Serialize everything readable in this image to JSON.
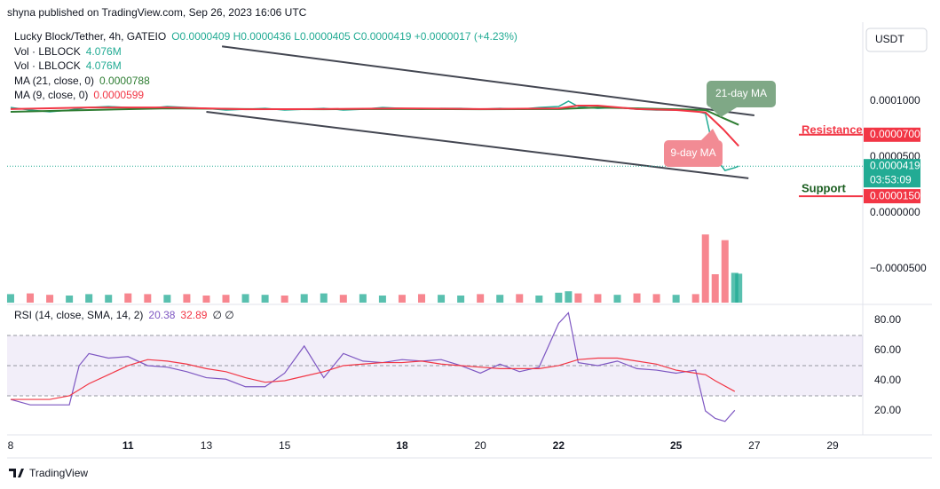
{
  "header": "shyna published on TradingView.com, Sep 26, 2023 16:06 UTC",
  "currency_button": "USDT",
  "footer": "TradingView",
  "chart_data": {
    "type": "line",
    "legend": {
      "symbol": "Lucky Block/Tether, 4h, GATEIO",
      "ohlc": "O0.0000409 H0.0000436 L0.0000405 C0.0000419 +0.0000017 (+4.23%)"
    },
    "xlim": [
      7.91,
      29.77
    ],
    "xticks": [
      8,
      11,
      13,
      15,
      18,
      20,
      22,
      25,
      27,
      29
    ],
    "ylim": [
      -8.1e-05,
      0.0001667
    ],
    "yticks": [
      {
        "value": 0.0001,
        "label": "0.0001000"
      },
      {
        "value": 5e-05,
        "label": "0.0000500"
      },
      {
        "value": 0,
        "label": "0.0000000"
      },
      {
        "value": -5e-05,
        "label": "−0.0000500"
      }
    ],
    "series": [
      {
        "name": "Lucky Block/Tether, 4h, GATEIO",
        "color": "#22ab94",
        "x": [
          8,
          8.5,
          9,
          9.5,
          10,
          10.5,
          11,
          11.5,
          12,
          12.5,
          13,
          13.5,
          14,
          14.5,
          15,
          15.5,
          16,
          16.5,
          17,
          17.5,
          18,
          18.5,
          19,
          19.5,
          20,
          20.5,
          21,
          21.5,
          22,
          22.25,
          22.5,
          23,
          23.5,
          24,
          24.5,
          25,
          25.5,
          25.75,
          26,
          26.25,
          26.5,
          26.6
        ],
        "values": [
          9.44e-05,
          9.21e-05,
          9.05e-05,
          9.21e-05,
          9.44e-05,
          9.52e-05,
          9.44e-05,
          9.36e-05,
          9.52e-05,
          9.44e-05,
          9.36e-05,
          9.21e-05,
          9.28e-05,
          9.36e-05,
          9.21e-05,
          9.28e-05,
          9.36e-05,
          9.21e-05,
          9.28e-05,
          9.44e-05,
          9.36e-05,
          9.28e-05,
          9.36e-05,
          9.36e-05,
          9.28e-05,
          9.36e-05,
          9.28e-05,
          9.44e-05,
          9.52e-05,
          0.0001,
          9.52e-05,
          9.36e-05,
          9.44e-05,
          9.28e-05,
          9.21e-05,
          9.21e-05,
          9.13e-05,
          8.89e-05,
          5e-05,
          3.8e-05,
          4.05e-05,
          4.19e-05
        ]
      },
      {
        "name": "MA (21, close, 0)",
        "color": "#2e7d32",
        "x": [
          8,
          10,
          12,
          14,
          16,
          18,
          20,
          22,
          23,
          24,
          25,
          25.75,
          26.2,
          26.6
        ],
        "values": [
          9.05e-05,
          9.21e-05,
          9.36e-05,
          9.3e-05,
          9.28e-05,
          9.3e-05,
          9.28e-05,
          9.3e-05,
          9.44e-05,
          9.36e-05,
          9.28e-05,
          9.21e-05,
          8.5e-05,
          7.88e-05
        ]
      },
      {
        "name": "MA (9, close, 0)",
        "color": "#f23645",
        "x": [
          8,
          10,
          12,
          14,
          16,
          18,
          20,
          22,
          22.5,
          23,
          24,
          25,
          25.75,
          26.2,
          26.6
        ],
        "values": [
          9.3e-05,
          9.44e-05,
          9.44e-05,
          9.28e-05,
          9.3e-05,
          9.36e-05,
          9.3e-05,
          9.36e-05,
          9.6e-05,
          9.6e-05,
          9.3e-05,
          9.21e-05,
          9e-05,
          7.5e-05,
          5.99e-05
        ]
      }
    ],
    "volume": {
      "name": "Vol · LBLOCK",
      "label": "4.076M",
      "values": [
        1.2,
        1.3,
        1.1,
        1.0,
        1.2,
        1.1,
        1.3,
        1.2,
        1.1,
        1.2,
        1.0,
        1.1,
        1.2,
        1.1,
        1.0,
        1.2,
        1.3,
        1.1,
        1.2,
        1.0,
        1.1,
        1.2,
        1.1,
        1.0,
        1.2,
        1.1,
        1.2,
        1.0,
        1.4,
        1.6,
        1.3,
        1.2,
        1.1,
        1.3,
        1.2,
        1.1,
        1.2,
        9.6,
        4.0,
        8.8,
        4.2,
        4.076
      ]
    },
    "price_labels": [
      {
        "value": 7e-05,
        "label": "0.0000700",
        "color": "#f23645"
      },
      {
        "value": 4.19e-05,
        "label": "0.0000419",
        "sub": "03:53:09",
        "color": "#22ab94"
      },
      {
        "value": 1.5e-05,
        "label": "0.0000150",
        "color": "#f23645"
      }
    ],
    "annotations": [
      {
        "text": "Resistance",
        "color": "#f23645"
      },
      {
        "text": "Support",
        "color": "#1b5e20"
      },
      {
        "text": "21-day MA",
        "color": "#7fa886"
      },
      {
        "text": "9-day MA",
        "color": "#f28b94"
      }
    ],
    "trendlines": [
      {
        "x": [
          13.4,
          27.0
        ],
        "values": [
          0.000149,
          8.73e-05
        ]
      },
      {
        "x": [
          13.0,
          26.85
        ],
        "values": [
          9.05e-05,
          3.1e-05
        ]
      }
    ],
    "rsi": {
      "title": "RSI (14, close, SMA, 14, 2)",
      "extra": "∅ ∅",
      "ylim": [
        4.1,
        89.4
      ],
      "yticks": [
        {
          "value": 80,
          "label": "80.00"
        },
        {
          "value": 60,
          "label": "60.00"
        },
        {
          "value": 40,
          "label": "40.00"
        },
        {
          "value": 20,
          "label": "20.00"
        }
      ],
      "levels": [
        30,
        50,
        70
      ],
      "series": [
        {
          "name": "RSI",
          "color": "#7e57c2",
          "x": [
            8,
            8.5,
            9,
            9.5,
            9.75,
            10,
            10.5,
            11,
            11.5,
            12,
            12.5,
            13,
            13.5,
            14,
            14.5,
            15,
            15.5,
            16,
            16.5,
            17,
            17.5,
            18,
            18.5,
            19,
            19.5,
            20,
            20.5,
            21,
            21.5,
            22,
            22.25,
            22.5,
            23,
            23.5,
            24,
            24.5,
            25,
            25.5,
            25.75,
            26,
            26.25,
            26.5
          ],
          "values": [
            27.6,
            24,
            24,
            24,
            50,
            58,
            55,
            56,
            50,
            49,
            46,
            42,
            41,
            36,
            36,
            45,
            63,
            42,
            58,
            53,
            52,
            54,
            53,
            54,
            50,
            45,
            51,
            46,
            49,
            78,
            85,
            52,
            50,
            53,
            48,
            47,
            45,
            47,
            20,
            15,
            13,
            20.38
          ]
        },
        {
          "name": "SMA",
          "color": "#f23645",
          "x": [
            8,
            9,
            9.5,
            10,
            10.5,
            11,
            11.5,
            12,
            12.5,
            13,
            13.5,
            14,
            14.5,
            15,
            15.5,
            16,
            16.5,
            17,
            17.5,
            18,
            18.5,
            19,
            19.5,
            20,
            20.5,
            21,
            21.5,
            22,
            22.5,
            23,
            23.5,
            24,
            24.5,
            25,
            25.5,
            25.75,
            26,
            26.5
          ],
          "values": [
            27.6,
            27.6,
            30,
            38,
            44,
            50,
            54,
            53,
            51,
            48,
            46,
            42,
            39,
            40,
            43,
            46,
            50,
            51,
            52,
            52,
            53,
            51,
            50,
            49,
            48,
            48,
            48,
            50,
            54,
            55,
            55,
            53,
            51,
            47,
            45,
            44,
            40,
            32.89
          ]
        }
      ]
    }
  }
}
